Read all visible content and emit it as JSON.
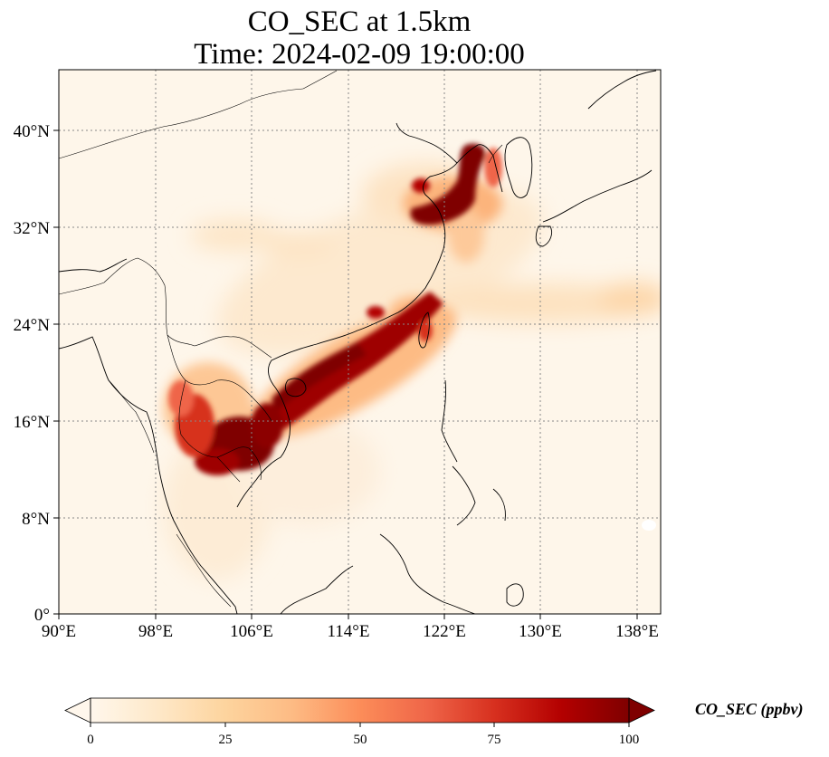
{
  "figure": {
    "title_line1": "CO_SEC at 1.5km",
    "title_line2": "Time: 2024-02-09 19:00:00"
  },
  "axes": {
    "x_ticks": [
      "90°E",
      "98°E",
      "106°E",
      "114°E",
      "122°E",
      "130°E",
      "138°E"
    ],
    "y_ticks": [
      "40°N",
      "32°N",
      "24°N",
      "16°N",
      "8°N",
      "0°"
    ]
  },
  "colorbar": {
    "label": "CO_SEC (ppbv)",
    "ticks": [
      "0",
      "25",
      "50",
      "75",
      "100"
    ],
    "colormap": [
      "#fff7ec",
      "#fee8c8",
      "#fdd49e",
      "#fdbb84",
      "#fc8d59",
      "#ef6548",
      "#d7301f",
      "#b30000",
      "#7f0000"
    ],
    "extend": "both"
  },
  "chart_data": {
    "type": "heatmap",
    "variable": "CO_SEC",
    "units": "ppbv",
    "level": "1.5km",
    "time": "2024-02-09 19:00:00",
    "xlim": [
      90,
      140
    ],
    "ylim": [
      0,
      45
    ],
    "vmin": 0,
    "vmax": 100,
    "gridlines": true
  }
}
